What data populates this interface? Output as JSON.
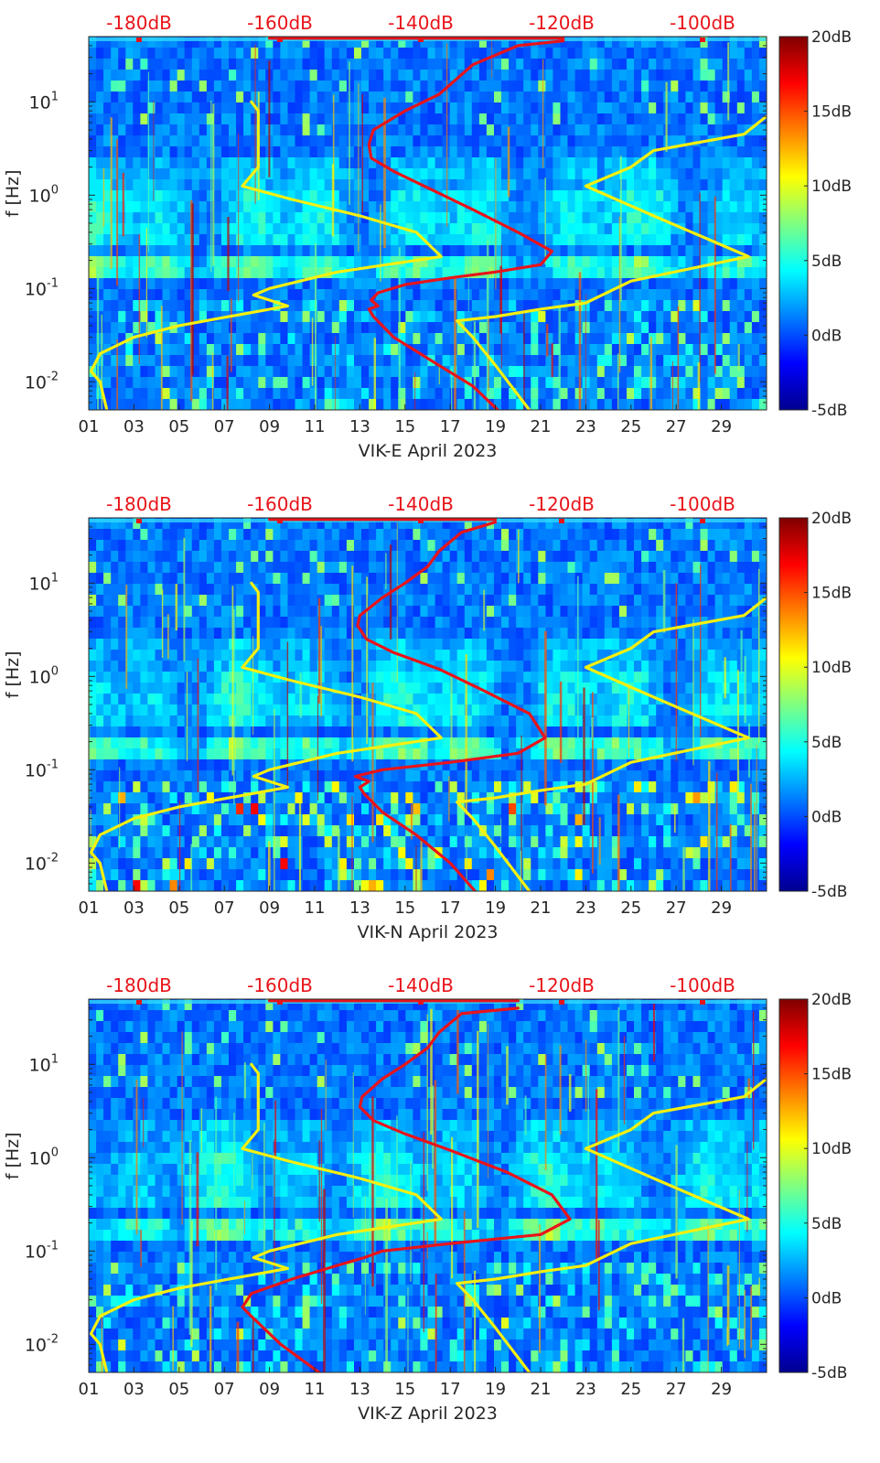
{
  "chart_data": [
    {
      "type": "heatmap",
      "xlabel": "VIK-E April 2023",
      "ylabel": "f [Hz]",
      "x_ticks": [
        "01",
        "03",
        "05",
        "07",
        "09",
        "11",
        "13",
        "15",
        "17",
        "19",
        "21",
        "23",
        "25",
        "27",
        "29"
      ],
      "x_range_days": [
        1,
        31
      ],
      "y_scale": "log",
      "y_range_hz": [
        0.005,
        50
      ],
      "y_ticks": [
        {
          "label_base": "10",
          "label_exp": "-2",
          "value": 0.01
        },
        {
          "label_base": "10",
          "label_exp": "-1",
          "value": 0.1
        },
        {
          "label_base": "10",
          "label_exp": "0",
          "value": 1
        },
        {
          "label_base": "10",
          "label_exp": "1",
          "value": 10
        }
      ],
      "colorbar": {
        "range_db": [
          -5,
          20
        ],
        "ticks": [
          "20dB",
          "15dB",
          "10dB",
          "5dB",
          "0dB",
          "-5dB"
        ]
      },
      "top_axis": {
        "ticks": [
          "-180dB",
          "-160dB",
          "-140dB",
          "-120dB",
          "-100dB"
        ],
        "color": "#e8141a"
      },
      "overlay_lines": [
        {
          "color": "#e8141a",
          "points": [
            [
              21,
              45
            ],
            [
              19,
              40
            ],
            [
              17,
              25
            ],
            [
              15.5,
              12
            ],
            [
              14,
              8
            ],
            [
              12.6,
              5
            ],
            [
              12.4,
              3.5
            ],
            [
              12.5,
              2.5
            ],
            [
              13.5,
              1.8
            ],
            [
              15,
              1.2
            ],
            [
              17,
              0.7
            ],
            [
              19,
              0.4
            ],
            [
              20.5,
              0.25
            ],
            [
              20,
              0.18
            ],
            [
              18,
              0.15
            ],
            [
              16,
              0.13
            ],
            [
              14,
              0.11
            ],
            [
              12.8,
              0.09
            ],
            [
              12.5,
              0.075
            ],
            [
              12.8,
              0.065
            ],
            [
              12.4,
              0.06
            ],
            [
              12.6,
              0.05
            ],
            [
              13.5,
              0.03
            ],
            [
              15.5,
              0.015
            ],
            [
              17,
              0.009
            ],
            [
              18.1,
              0.005
            ]
          ]
        },
        {
          "color": "#e8141a",
          "points": [
            [
              8,
              48
            ],
            [
              21,
              48
            ]
          ]
        },
        {
          "color": "#f5f010",
          "points": [
            [
              7.2,
              10
            ],
            [
              7.5,
              8
            ],
            [
              7.5,
              4
            ],
            [
              7.5,
              2
            ],
            [
              6.8,
              1.25
            ],
            [
              9,
              0.9
            ],
            [
              12,
              0.6
            ],
            [
              14.5,
              0.4
            ],
            [
              15.6,
              0.22
            ],
            [
              11,
              0.15
            ],
            [
              8,
              0.1
            ],
            [
              7.3,
              0.085
            ],
            [
              8.8,
              0.065
            ],
            [
              4,
              0.04
            ],
            [
              2,
              0.03
            ],
            [
              0.5,
              0.02
            ],
            [
              0.1,
              0.013
            ],
            [
              0.5,
              0.01
            ],
            [
              0.8,
              0.005
            ]
          ]
        },
        {
          "color": "#f5f010",
          "points": [
            [
              30.8,
              10
            ],
            [
              29,
              4.5
            ],
            [
              25,
              3
            ],
            [
              24,
              2
            ],
            [
              22,
              1.25
            ],
            [
              25,
              0.6
            ],
            [
              29.2,
              0.22
            ],
            [
              24,
              0.12
            ],
            [
              22,
              0.07
            ],
            [
              20,
              0.06
            ],
            [
              18,
              0.05
            ],
            [
              16.3,
              0.045
            ],
            [
              17,
              0.03
            ],
            [
              18,
              0.015
            ],
            [
              19.5,
              0.005
            ]
          ]
        }
      ]
    },
    {
      "type": "heatmap",
      "xlabel": "VIK-N April 2023",
      "ylabel": "f [Hz]",
      "x_ticks": [
        "01",
        "03",
        "05",
        "07",
        "09",
        "11",
        "13",
        "15",
        "17",
        "19",
        "21",
        "23",
        "25",
        "27",
        "29"
      ],
      "x_range_days": [
        1,
        31
      ],
      "y_scale": "log",
      "y_range_hz": [
        0.005,
        50
      ],
      "y_ticks": [
        {
          "label_base": "10",
          "label_exp": "-2",
          "value": 0.01
        },
        {
          "label_base": "10",
          "label_exp": "-1",
          "value": 0.1
        },
        {
          "label_base": "10",
          "label_exp": "0",
          "value": 1
        },
        {
          "label_base": "10",
          "label_exp": "1",
          "value": 10
        }
      ],
      "colorbar": {
        "range_db": [
          -5,
          20
        ],
        "ticks": [
          "20dB",
          "15dB",
          "10dB",
          "5dB",
          "0dB",
          "-5dB"
        ]
      },
      "top_axis": {
        "ticks": [
          "-180dB",
          "-160dB",
          "-140dB",
          "-120dB",
          "-100dB"
        ],
        "color": "#e8141a"
      },
      "overlay_lines": [
        {
          "color": "#e8141a",
          "points": [
            [
              18,
              45
            ],
            [
              16.5,
              35
            ],
            [
              15.5,
              22
            ],
            [
              15,
              15
            ],
            [
              14,
              10
            ],
            [
              13,
              7
            ],
            [
              12,
              4.5
            ],
            [
              11.9,
              3.5
            ],
            [
              12.3,
              2.5
            ],
            [
              13.5,
              1.8
            ],
            [
              15.5,
              1.2
            ],
            [
              17.5,
              0.7
            ],
            [
              19.5,
              0.4
            ],
            [
              20.2,
              0.22
            ],
            [
              19,
              0.15
            ],
            [
              16,
              0.12
            ],
            [
              13,
              0.1
            ],
            [
              11.8,
              0.085
            ],
            [
              12.4,
              0.075
            ],
            [
              12,
              0.065
            ],
            [
              12.2,
              0.055
            ],
            [
              13,
              0.035
            ],
            [
              14.5,
              0.02
            ],
            [
              16,
              0.01
            ],
            [
              17.1,
              0.005
            ]
          ]
        },
        {
          "color": "#e8141a",
          "points": [
            [
              8,
              48
            ],
            [
              18,
              48
            ]
          ]
        },
        {
          "color": "#f5f010",
          "points": [
            [
              7.2,
              10
            ],
            [
              7.5,
              8
            ],
            [
              7.5,
              4
            ],
            [
              7.5,
              2
            ],
            [
              6.8,
              1.25
            ],
            [
              9,
              0.9
            ],
            [
              12,
              0.6
            ],
            [
              14.5,
              0.4
            ],
            [
              15.6,
              0.22
            ],
            [
              11,
              0.15
            ],
            [
              8,
              0.1
            ],
            [
              7.3,
              0.085
            ],
            [
              8.8,
              0.065
            ],
            [
              4,
              0.04
            ],
            [
              2,
              0.03
            ],
            [
              0.5,
              0.02
            ],
            [
              0.1,
              0.013
            ],
            [
              0.5,
              0.01
            ],
            [
              0.8,
              0.005
            ]
          ]
        },
        {
          "color": "#f5f010",
          "points": [
            [
              30.8,
              10
            ],
            [
              29,
              4.5
            ],
            [
              25,
              3
            ],
            [
              24,
              2
            ],
            [
              22,
              1.25
            ],
            [
              25,
              0.6
            ],
            [
              29.2,
              0.22
            ],
            [
              24,
              0.12
            ],
            [
              22,
              0.07
            ],
            [
              20,
              0.06
            ],
            [
              18,
              0.05
            ],
            [
              16.3,
              0.045
            ],
            [
              17,
              0.03
            ],
            [
              18,
              0.015
            ],
            [
              19.5,
              0.005
            ]
          ]
        }
      ]
    },
    {
      "type": "heatmap",
      "xlabel": "VIK-Z April 2023",
      "ylabel": "f [Hz]",
      "x_ticks": [
        "01",
        "03",
        "05",
        "07",
        "09",
        "11",
        "13",
        "15",
        "17",
        "19",
        "21",
        "23",
        "25",
        "27",
        "29"
      ],
      "x_range_days": [
        1,
        31
      ],
      "y_scale": "log",
      "y_range_hz": [
        0.005,
        50
      ],
      "y_ticks": [
        {
          "label_base": "10",
          "label_exp": "-2",
          "value": 0.01
        },
        {
          "label_base": "10",
          "label_exp": "-1",
          "value": 0.1
        },
        {
          "label_base": "10",
          "label_exp": "0",
          "value": 1
        },
        {
          "label_base": "10",
          "label_exp": "1",
          "value": 10
        }
      ],
      "colorbar": {
        "range_db": [
          -5,
          20
        ],
        "ticks": [
          "20dB",
          "15dB",
          "10dB",
          "5dB",
          "0dB",
          "-5dB"
        ]
      },
      "top_axis": {
        "ticks": [
          "-180dB",
          "-160dB",
          "-140dB",
          "-120dB",
          "-100dB"
        ],
        "color": "#e8141a"
      },
      "overlay_lines": [
        {
          "color": "#e8141a",
          "points": [
            [
              19,
              40
            ],
            [
              16.5,
              35
            ],
            [
              15.5,
              22
            ],
            [
              15,
              15
            ],
            [
              14,
              10
            ],
            [
              13,
              7
            ],
            [
              12.1,
              4.5
            ],
            [
              12,
              3.5
            ],
            [
              12.6,
              2.5
            ],
            [
              14,
              1.8
            ],
            [
              16,
              1.2
            ],
            [
              18.5,
              0.7
            ],
            [
              20.5,
              0.4
            ],
            [
              21.3,
              0.22
            ],
            [
              20,
              0.15
            ],
            [
              16,
              0.12
            ],
            [
              13,
              0.1
            ],
            [
              12.2,
              0.085
            ],
            [
              11,
              0.07
            ],
            [
              9,
              0.05
            ],
            [
              7.2,
              0.035
            ],
            [
              6.8,
              0.025
            ],
            [
              7.2,
              0.02
            ],
            [
              8.5,
              0.01
            ],
            [
              10.2,
              0.005
            ]
          ]
        },
        {
          "color": "#e8141a",
          "points": [
            [
              8,
              48
            ],
            [
              19,
              48
            ]
          ]
        },
        {
          "color": "#f5f010",
          "points": [
            [
              7.2,
              10
            ],
            [
              7.5,
              8
            ],
            [
              7.5,
              4
            ],
            [
              7.5,
              2
            ],
            [
              6.8,
              1.25
            ],
            [
              9,
              0.9
            ],
            [
              12,
              0.6
            ],
            [
              14.5,
              0.4
            ],
            [
              15.6,
              0.22
            ],
            [
              11,
              0.15
            ],
            [
              8,
              0.1
            ],
            [
              7.3,
              0.085
            ],
            [
              8.8,
              0.065
            ],
            [
              4,
              0.04
            ],
            [
              2,
              0.03
            ],
            [
              0.5,
              0.02
            ],
            [
              0.1,
              0.013
            ],
            [
              0.5,
              0.01
            ],
            [
              0.8,
              0.005
            ]
          ]
        },
        {
          "color": "#f5f010",
          "points": [
            [
              30.8,
              10
            ],
            [
              29,
              4.5
            ],
            [
              25,
              3
            ],
            [
              24,
              2
            ],
            [
              22,
              1.25
            ],
            [
              25,
              0.6
            ],
            [
              29.2,
              0.22
            ],
            [
              24,
              0.12
            ],
            [
              22,
              0.07
            ],
            [
              20,
              0.06
            ],
            [
              18,
              0.05
            ],
            [
              16.3,
              0.045
            ],
            [
              17,
              0.03
            ],
            [
              18,
              0.015
            ],
            [
              19.5,
              0.005
            ]
          ]
        }
      ]
    }
  ]
}
